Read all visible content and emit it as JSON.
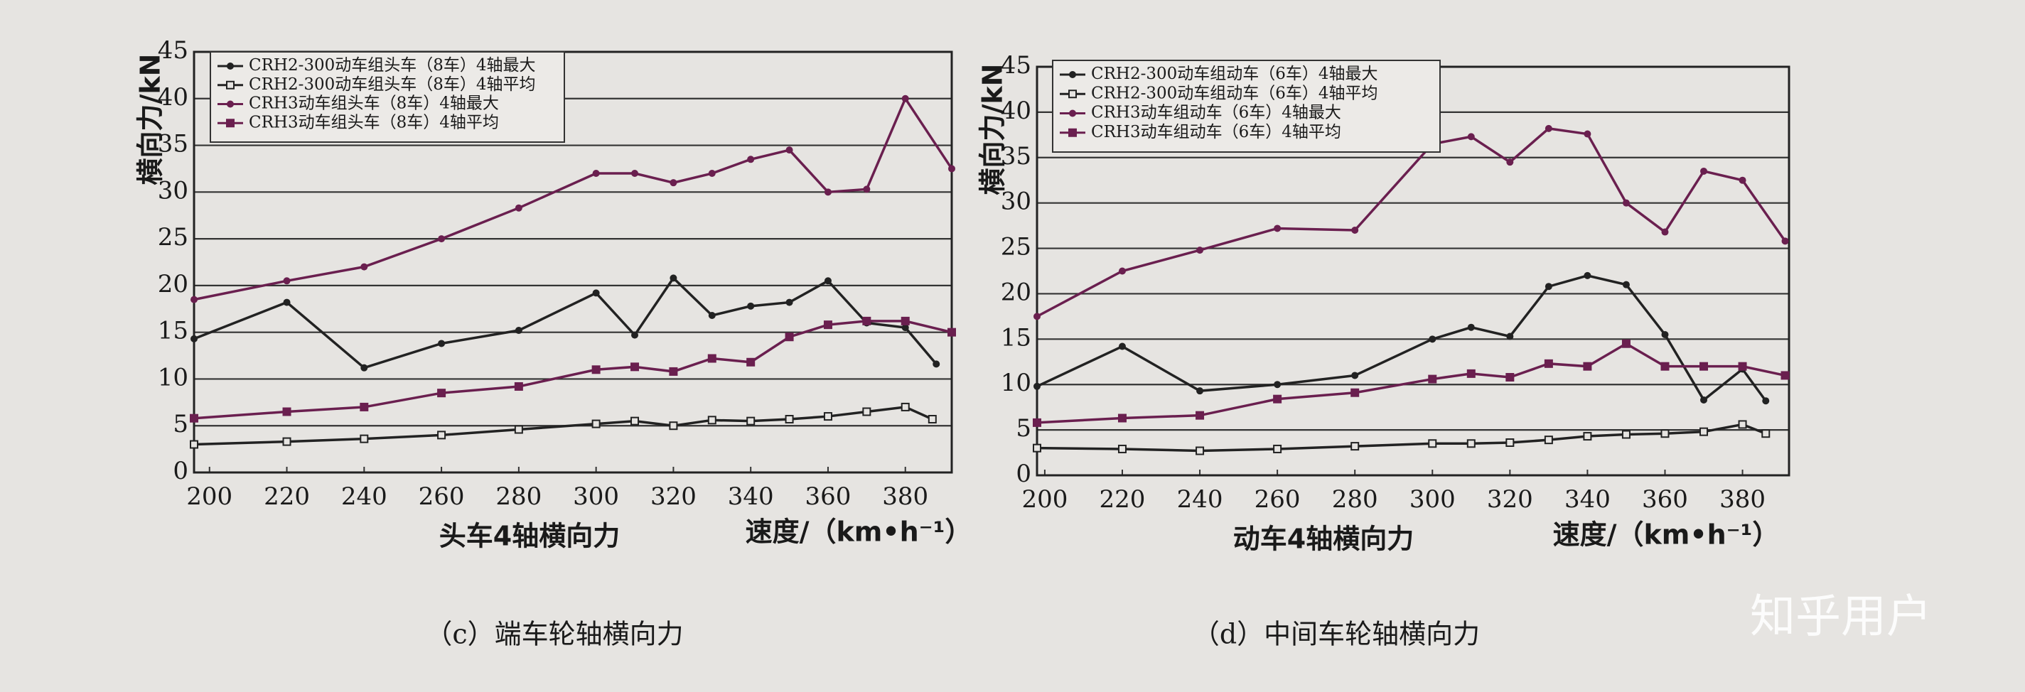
{
  "chart_data": [
    {
      "type": "line",
      "ylabel": "横向力/kN",
      "xlabel": "头车4轴横向力",
      "xunit_label": "速度/（km•h⁻¹）",
      "xlim": [
        196,
        392
      ],
      "ylim": [
        0,
        45
      ],
      "xticks": [
        200,
        220,
        240,
        260,
        280,
        300,
        320,
        340,
        360,
        380
      ],
      "yticks": [
        0,
        5,
        10,
        15,
        20,
        25,
        30,
        35,
        40,
        45
      ],
      "grid": true,
      "series": [
        {
          "name": "CRH2-300动车组头车（8车）4轴最大",
          "color": "#222222",
          "marker": "circle",
          "x": [
            196,
            220,
            240,
            260,
            280,
            300,
            310,
            320,
            330,
            340,
            350,
            360,
            370,
            380,
            388
          ],
          "values": [
            14.3,
            18.2,
            11.2,
            13.8,
            15.2,
            19.2,
            14.7,
            20.8,
            16.8,
            17.8,
            18.2,
            20.5,
            16,
            15.5,
            11.6
          ]
        },
        {
          "name": "CRH2-300动车组头车（8车）4轴平均",
          "color": "#222222",
          "marker": "square-open",
          "x": [
            196,
            220,
            240,
            260,
            280,
            300,
            310,
            320,
            330,
            340,
            350,
            360,
            370,
            380,
            387
          ],
          "values": [
            3,
            3.3,
            3.6,
            4,
            4.6,
            5.2,
            5.5,
            5,
            5.6,
            5.5,
            5.7,
            6,
            6.5,
            7,
            5.7
          ]
        },
        {
          "name": "CRH3动车组头车（8车）4轴最大",
          "color": "#6a1f4f",
          "marker": "circle",
          "x": [
            196,
            220,
            240,
            260,
            280,
            300,
            310,
            320,
            330,
            340,
            350,
            360,
            370,
            380,
            392
          ],
          "values": [
            18.5,
            20.5,
            22,
            25,
            28.3,
            32,
            32,
            31,
            32,
            33.5,
            34.5,
            30,
            30.3,
            40,
            32.5
          ]
        },
        {
          "name": "CRH3动车组头车（8车）4轴平均",
          "color": "#6a1f4f",
          "marker": "square",
          "x": [
            196,
            220,
            240,
            260,
            280,
            300,
            310,
            320,
            330,
            340,
            350,
            360,
            370,
            380,
            392
          ],
          "values": [
            5.8,
            6.5,
            7,
            8.5,
            9.2,
            11,
            11.3,
            10.8,
            12.2,
            11.8,
            14.5,
            15.8,
            16.2,
            16.2,
            15
          ]
        }
      ]
    },
    {
      "type": "line",
      "ylabel": "横向力/kN",
      "xlabel": "动车4轴横向力",
      "xunit_label": "速度/（km•h⁻¹）",
      "xlim": [
        198,
        392
      ],
      "ylim": [
        0,
        45
      ],
      "xticks": [
        200,
        220,
        240,
        260,
        280,
        300,
        320,
        340,
        360,
        380
      ],
      "yticks": [
        0,
        5,
        10,
        15,
        20,
        25,
        30,
        35,
        40,
        45
      ],
      "grid": true,
      "series": [
        {
          "name": "CRH2-300动车组动车（6车）4轴最大",
          "color": "#222222",
          "marker": "circle",
          "x": [
            198,
            220,
            240,
            260,
            280,
            300,
            310,
            320,
            330,
            340,
            350,
            360,
            370,
            380,
            386
          ],
          "values": [
            9.8,
            14.2,
            9.3,
            10,
            11,
            15,
            16.3,
            15.3,
            20.8,
            22,
            21,
            15.5,
            8.3,
            11.7,
            8.2
          ]
        },
        {
          "name": "CRH2-300动车组动车（6车）4轴平均",
          "color": "#222222",
          "marker": "square-open",
          "x": [
            198,
            220,
            240,
            260,
            280,
            300,
            310,
            320,
            330,
            340,
            350,
            360,
            370,
            380,
            386
          ],
          "values": [
            3,
            2.9,
            2.7,
            2.9,
            3.2,
            3.5,
            3.5,
            3.6,
            3.9,
            4.3,
            4.5,
            4.6,
            4.8,
            5.6,
            4.6
          ]
        },
        {
          "name": "CRH3动车组动车（6车）4轴最大",
          "color": "#6a1f4f",
          "marker": "circle",
          "x": [
            198,
            220,
            240,
            260,
            280,
            300,
            310,
            320,
            330,
            340,
            350,
            360,
            370,
            380,
            391
          ],
          "values": [
            17.5,
            22.5,
            24.8,
            27.2,
            27,
            36.5,
            37.3,
            34.5,
            38.2,
            37.6,
            30,
            26.8,
            33.5,
            32.5,
            25.8
          ]
        },
        {
          "name": "CRH3动车组动车（6车）4轴平均",
          "color": "#6a1f4f",
          "marker": "square",
          "x": [
            198,
            220,
            240,
            260,
            280,
            300,
            310,
            320,
            330,
            340,
            350,
            360,
            370,
            380,
            391
          ],
          "values": [
            5.8,
            6.3,
            6.6,
            8.4,
            9.1,
            10.6,
            11.2,
            10.8,
            12.3,
            12,
            14.5,
            12,
            12,
            12,
            11
          ]
        }
      ]
    }
  ],
  "captions": [
    "（c）端车轮轴横向力",
    "（d）中间车轮轴横向力"
  ],
  "watermark": "知乎用户"
}
